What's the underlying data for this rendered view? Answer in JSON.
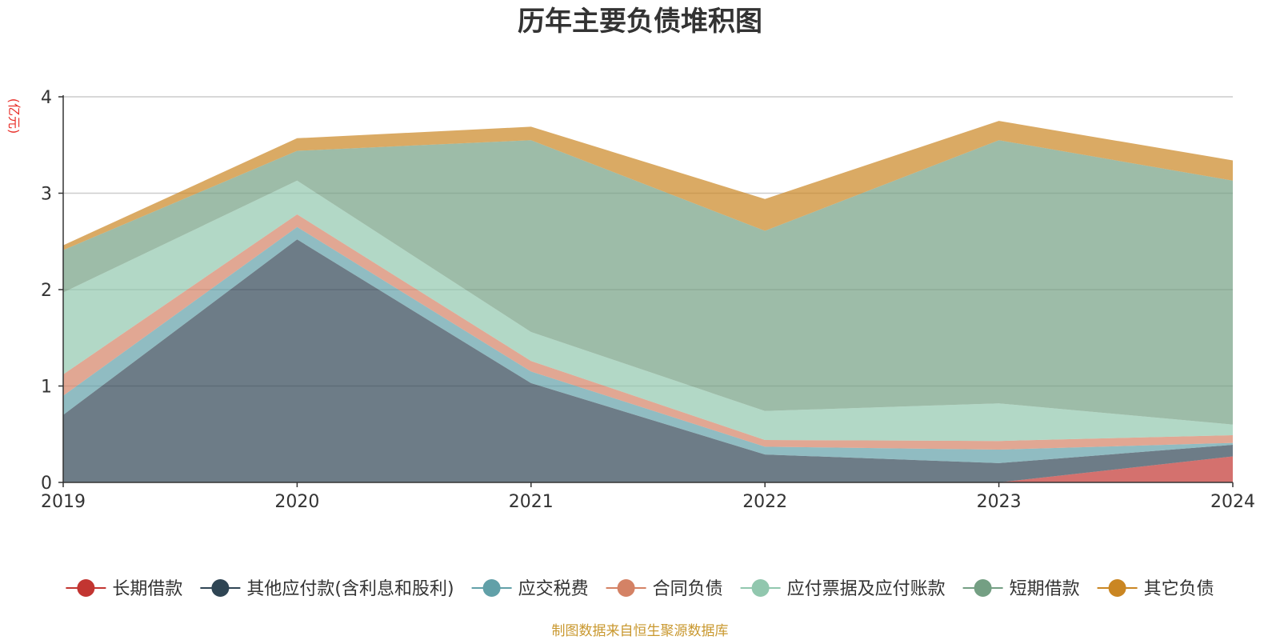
{
  "chart_data": {
    "type": "area",
    "stacked": true,
    "title": "历年主要负债堆积图",
    "ylabel": "(亿元)",
    "xlabel": "",
    "x": [
      "2019",
      "2020",
      "2021",
      "2022",
      "2023",
      "2024"
    ],
    "ylim": [
      0,
      4
    ],
    "yticks": [
      "0",
      "1",
      "2",
      "3",
      "4"
    ],
    "grid": true,
    "legend_position": "bottom",
    "series": [
      {
        "name": "长期借款",
        "color": "#c23531",
        "values": [
          0,
          0,
          0,
          0,
          0,
          0.27
        ]
      },
      {
        "name": "其他应付款(含利息和股利)",
        "color": "#2f4554",
        "values": [
          0.7,
          2.52,
          1.03,
          0.29,
          0.2,
          0.12
        ]
      },
      {
        "name": "应交税费",
        "color": "#61a0a8",
        "values": [
          0.2,
          0.13,
          0.12,
          0.08,
          0.14,
          0.02
        ]
      },
      {
        "name": "合同负债",
        "color": "#d48265",
        "values": [
          0.22,
          0.13,
          0.11,
          0.07,
          0.09,
          0.08
        ]
      },
      {
        "name": "应付票据及应付账款",
        "color": "#91c7ae",
        "values": [
          0.85,
          0.35,
          0.3,
          0.3,
          0.39,
          0.11
        ]
      },
      {
        "name": "短期借款",
        "color": "#749f83",
        "values": [
          0.44,
          0.31,
          1.99,
          1.87,
          2.73,
          2.53
        ]
      },
      {
        "name": "其它负债",
        "color": "#ca8622",
        "values": [
          0.05,
          0.13,
          0.14,
          0.33,
          0.2,
          0.21
        ]
      }
    ],
    "source": "制图数据来自恒生聚源数据库"
  }
}
